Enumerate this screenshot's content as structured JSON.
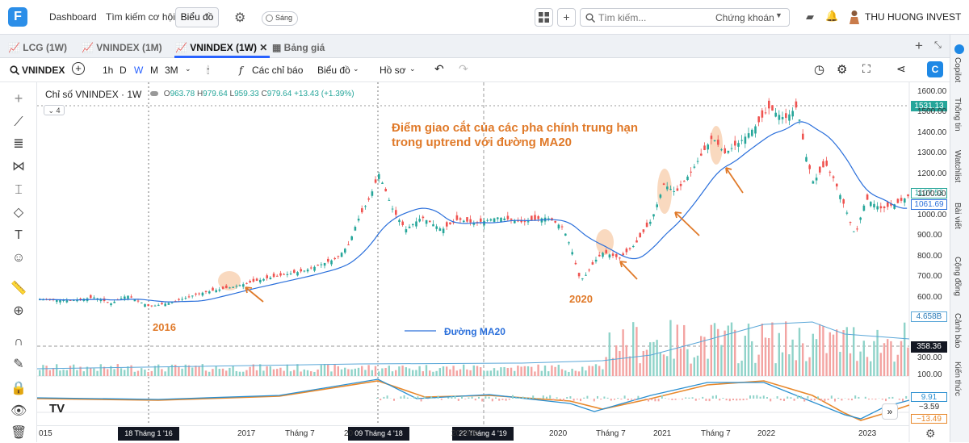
{
  "header": {
    "logo": "F",
    "nav": [
      "Dashboard",
      "Tìm kiếm cơ hội",
      "Biểu đồ"
    ],
    "theme_toggle": "Sáng",
    "search_placeholder": "Tìm kiếm...",
    "search_filter": "Chứng khoán",
    "user_name": "THU HUONG INVEST"
  },
  "tabs": [
    {
      "label": "LCG (1W)"
    },
    {
      "label": "VNINDEX (1M)"
    },
    {
      "label": "VNINDEX (1W)"
    },
    {
      "label": "Bảng giá"
    }
  ],
  "toolbar": {
    "symbol": "VNINDEX",
    "intervals": [
      "1h",
      "D",
      "W",
      "M",
      "3M"
    ],
    "indicators": "Các chỉ báo",
    "chart": "Biểu đồ",
    "profile": "Hồ sơ"
  },
  "right_tabs": [
    "Copilot",
    "Thông tin",
    "Watchlist",
    "Bài viết",
    "Cộng đồng",
    "Cảnh báo",
    "Kiến thức"
  ],
  "legend": {
    "title": "Chỉ số VNINDEX · 1W",
    "open_label": "O",
    "open": "963.78",
    "high_label": "H",
    "high": "979.64",
    "low_label": "L",
    "low": "959.33",
    "close_label": "C",
    "close": "979.64",
    "change": "+13.43 (+1.39%)",
    "collapse_count": "4"
  },
  "annotations": {
    "headline_1": "Điểm giao cắt của các pha chính trung hạn",
    "headline_2": "trong uptrend với đường MA20",
    "label_2016": "2016",
    "label_2020": "2020",
    "ma_legend": "Đường MA20"
  },
  "price_axis": {
    "ticks": [
      "1600.00",
      "1500.00",
      "1400.00",
      "1300.00",
      "1200.00",
      "1100.00",
      "1000.00",
      "900.00",
      "800.00",
      "700.00",
      "600.00"
    ],
    "badge_high": "1531.13",
    "badge_last": "1107.53",
    "badge_ma": "1061.69"
  },
  "volume_axis": {
    "badge_max": "4.658B",
    "badge_cross": "358.36",
    "tick": "300.00",
    "tick2": "100.00"
  },
  "macd_axis": {
    "badge_1": "9.91",
    "badge_2": "−3.59",
    "badge_3": "−13.49"
  },
  "time_axis": {
    "labels": [
      "015",
      "2017",
      "Tháng 7",
      "20",
      "2019",
      "20",
      "2020",
      "Tháng 7",
      "2021",
      "Tháng 7",
      "2022",
      "2023"
    ],
    "cross_1": "18 Tháng 1 '16",
    "cross_2": "09 Tháng 4 '18",
    "cross_3": "22 Tháng 4 '19"
  },
  "colors": {
    "up": "#26a69a",
    "down": "#ef5350",
    "ma": "#2a6fdb",
    "annotation": "#e07a2a"
  },
  "chart_data": {
    "type": "candlestick",
    "series": [
      {
        "name": "VNINDEX",
        "x": [
          "2015",
          "2016-01",
          "2016-06",
          "2017-01",
          "2017-07",
          "2018-04",
          "2018-07",
          "2019-04",
          "2019-12",
          "2020-03",
          "2020-07",
          "2020-11",
          "2021-01",
          "2021-07",
          "2022-01",
          "2022-06",
          "2022-11",
          "2023-03"
        ],
        "close": [
          590,
          555,
          650,
          720,
          790,
          1200,
          950,
          985,
          960,
          650,
          850,
          1000,
          1180,
          1310,
          1500,
          1180,
          880,
          1060
        ]
      },
      {
        "name": "Đường MA20",
        "x": [
          "2015",
          "2016-01",
          "2016-06",
          "2017-01",
          "2017-07",
          "2018-04",
          "2018-07",
          "2019-04",
          "2019-12",
          "2020-03",
          "2020-07",
          "2020-11",
          "2021-01",
          "2021-07",
          "2022-01",
          "2022-06",
          "2022-11",
          "2023-03"
        ],
        "values": [
          580,
          570,
          620,
          690,
          760,
          1080,
          1020,
          980,
          970,
          780,
          820,
          930,
          1090,
          1290,
          1480,
          1260,
          1010,
          1070
        ]
      }
    ],
    "ylim": [
      600,
      1600
    ]
  }
}
